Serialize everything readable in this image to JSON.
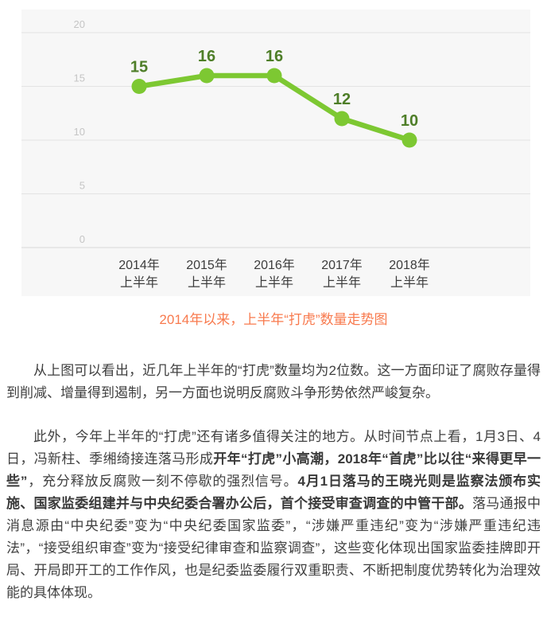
{
  "chart_data": {
    "type": "line",
    "categories": [
      {
        "line1": "2014年",
        "line2": "上半年"
      },
      {
        "line1": "2015年",
        "line2": "上半年"
      },
      {
        "line1": "2016年",
        "line2": "上半年"
      },
      {
        "line1": "2017年",
        "line2": "上半年"
      },
      {
        "line1": "2018年",
        "line2": "上半年"
      }
    ],
    "values": [
      15,
      16,
      16,
      12,
      10
    ],
    "data_labels": [
      "15",
      "16",
      "16",
      "12",
      "10"
    ],
    "yticks": [
      "20",
      "15",
      "10",
      "5",
      "0"
    ],
    "ytick_values": [
      20,
      15,
      10,
      5,
      0
    ],
    "ylim": [
      0,
      20
    ],
    "grid": true,
    "legend_position": "none",
    "title": "",
    "xlabel": "",
    "ylabel": "",
    "caption": "2014年以来，上半年“打虎”数量走势图",
    "colors": {
      "line": "#7dc832",
      "point": "#7dc832",
      "value_label": "#4e7e28",
      "ytick_label": "#c5c5c5",
      "xtick_label": "#3c3c3c",
      "gridline": "#e3e3e3",
      "axis_line": "#d8d8d8",
      "plot_background": "#f7f7f7",
      "caption_text": "#f87a4e"
    }
  },
  "article": {
    "paragraphs": [
      {
        "segments": [
          {
            "text": "从上图可以看出，近几年上半年的“打虎”数量均为2位数。这一方面印证了腐败存量得到削减、增量得到遏制，另一方面也说明反腐败斗争形势依然严峻复杂。",
            "bold": false
          }
        ]
      },
      {
        "segments": [
          {
            "text": "此外，今年上半年的“打虎”还有诸多值得关注的地方。从时间节点上看，1月3日、4日，冯新柱、季缃绮接连落马形成",
            "bold": false
          },
          {
            "text": "开年“打虎”小高潮，2018年“首虎”比以往“来得更早一些”",
            "bold": true
          },
          {
            "text": "，充分释放反腐败一刻不停歇的强烈信号。",
            "bold": false
          },
          {
            "text": "4月1日落马的王晓光则是监察法颁布实施、国家监委组建并与中央纪委合署办公后，首个接受审查调查的中管干部。",
            "bold": true
          },
          {
            "text": "落马通报中消息源由“中央纪委”变为“中央纪委国家监委”，“涉嫌严重违纪”变为“涉嫌严重违纪违法”，“接受组织审查”变为“接受纪律审查和监察调查”，这些变化体现出国家监委挂牌即开局、开局即开工的工作作风，也是纪委监委履行双重职责、不断把制度优势转化为治理效能的具体体现。",
            "bold": false
          }
        ]
      }
    ]
  }
}
